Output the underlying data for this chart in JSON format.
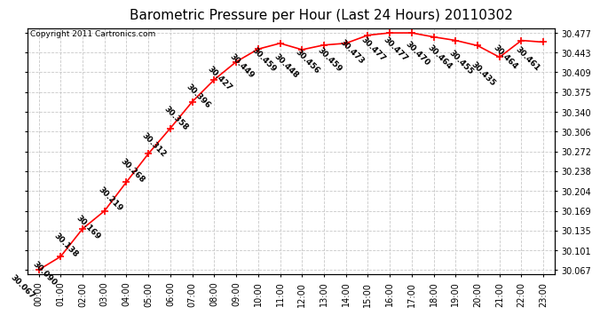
{
  "title": "Barometric Pressure per Hour (Last 24 Hours) 20110302",
  "copyright": "Copyright 2011 Cartronics.com",
  "hours": [
    "00:00",
    "01:00",
    "02:00",
    "03:00",
    "04:00",
    "05:00",
    "06:00",
    "07:00",
    "08:00",
    "09:00",
    "10:00",
    "11:00",
    "12:00",
    "13:00",
    "14:00",
    "15:00",
    "16:00",
    "17:00",
    "18:00",
    "19:00",
    "20:00",
    "21:00",
    "22:00",
    "23:00"
  ],
  "values": [
    30.067,
    30.09,
    30.138,
    30.169,
    30.219,
    30.268,
    30.312,
    30.358,
    30.396,
    30.427,
    30.449,
    30.459,
    30.448,
    30.456,
    30.459,
    30.473,
    30.477,
    30.477,
    30.47,
    30.464,
    30.455,
    30.435,
    30.464,
    30.461
  ],
  "line_color": "#ff0000",
  "marker_color": "#ff0000",
  "bg_color": "#ffffff",
  "grid_color": "#c8c8c8",
  "title_fontsize": 11,
  "copyright_fontsize": 6.5,
  "label_fontsize": 6.5,
  "tick_fontsize": 7,
  "ymin": 30.067,
  "ymax": 30.477,
  "yticks": [
    30.067,
    30.101,
    30.135,
    30.169,
    30.204,
    30.238,
    30.272,
    30.306,
    30.34,
    30.375,
    30.409,
    30.443,
    30.477
  ]
}
